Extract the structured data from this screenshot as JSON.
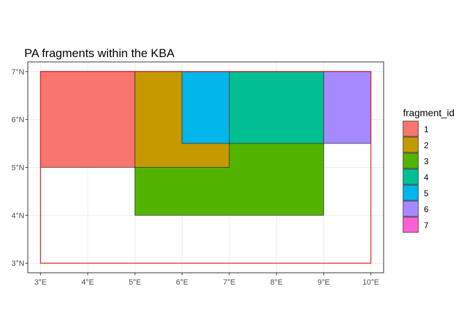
{
  "chart_data": {
    "type": "map",
    "title": "PA fragments within the KBA",
    "x_ticks": [
      "3°E",
      "4°E",
      "5°E",
      "6°E",
      "7°E",
      "8°E",
      "9°E",
      "10°E"
    ],
    "y_ticks": [
      "3°N",
      "4°N",
      "5°N",
      "6°N",
      "7°N"
    ],
    "x_range": [
      2.73,
      10.27
    ],
    "y_range": [
      2.8,
      7.2
    ],
    "grid": true,
    "legend_title": "fragment_id",
    "legend_placement": "right",
    "kba_outline": {
      "xmin": 3,
      "xmax": 10,
      "ymin": 3,
      "ymax": 7,
      "color": "#e41a1c"
    },
    "fragments": [
      {
        "id": "1",
        "color": "#F8766D",
        "polygon": [
          [
            3,
            5
          ],
          [
            5,
            5
          ],
          [
            5,
            7
          ],
          [
            3,
            7
          ]
        ]
      },
      {
        "id": "2",
        "color": "#C49A00",
        "polygon": [
          [
            5,
            5
          ],
          [
            7,
            5
          ],
          [
            7,
            5.5
          ],
          [
            6,
            5.5
          ],
          [
            6,
            7
          ],
          [
            5,
            7
          ]
        ]
      },
      {
        "id": "3",
        "color": "#53B400",
        "polygon": [
          [
            5,
            4
          ],
          [
            9,
            4
          ],
          [
            9,
            5.5
          ],
          [
            7,
            5.5
          ],
          [
            7,
            5
          ],
          [
            5,
            5
          ]
        ]
      },
      {
        "id": "4",
        "color": "#00C094",
        "polygon": [
          [
            7,
            5.5
          ],
          [
            9,
            5.5
          ],
          [
            9,
            7
          ],
          [
            7,
            7
          ]
        ]
      },
      {
        "id": "5",
        "color": "#00B6EB",
        "polygon": [
          [
            6,
            5.5
          ],
          [
            7,
            5.5
          ],
          [
            7,
            7
          ],
          [
            6,
            7
          ]
        ]
      },
      {
        "id": "6",
        "color": "#A58AFF",
        "polygon": [
          [
            9,
            5.5
          ],
          [
            10,
            5.5
          ],
          [
            10,
            7
          ],
          [
            9,
            7
          ]
        ]
      },
      {
        "id": "7",
        "color": "#FB61D7",
        "polygon": []
      }
    ]
  }
}
